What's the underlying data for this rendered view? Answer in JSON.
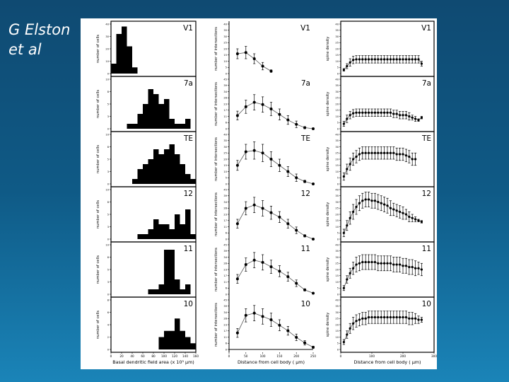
{
  "slide": {
    "credit_line1": "G Elston",
    "credit_line2": "et al",
    "background_top": "#0f4a72",
    "background_bottom": "#1a84b8"
  },
  "chart_data": {
    "type": "figure-grid",
    "rows": [
      "V1",
      "7a",
      "TE",
      "12",
      "11",
      "10"
    ],
    "columns": [
      {
        "type": "bar",
        "name": "histogram",
        "ylabel": "number of cells",
        "xlabel": "Basal dendritic field area (x 10³ µm)",
        "xlim": [
          0,
          160
        ],
        "xticks": [
          0,
          20,
          40,
          60,
          80,
          100,
          120,
          140,
          160
        ],
        "bins": [
          5,
          15,
          25,
          35,
          45,
          55,
          65,
          75,
          85,
          95,
          105,
          115,
          125,
          135,
          145,
          155
        ],
        "ylims": {
          "V1": [
            0,
            40
          ],
          "7a": [
            0,
            10
          ],
          "TE": [
            0,
            10
          ],
          "12": [
            0,
            10
          ],
          "11": [
            0,
            10
          ],
          "10": [
            0,
            8
          ]
        },
        "series": {
          "V1": [
            8,
            32,
            38,
            22,
            5,
            0,
            0,
            0,
            0,
            0,
            0,
            0,
            0,
            0,
            0,
            0
          ],
          "7a": [
            0,
            0,
            0,
            1,
            1,
            3,
            5,
            8,
            7,
            5,
            6,
            2,
            1,
            1,
            2,
            0
          ],
          "TE": [
            0,
            0,
            0,
            0,
            1,
            3,
            4,
            5,
            7,
            6,
            7,
            8,
            6,
            4,
            2,
            1
          ],
          "12": [
            0,
            0,
            0,
            0,
            0,
            1,
            1,
            2,
            4,
            3,
            3,
            2,
            5,
            3,
            6,
            1
          ],
          "11": [
            0,
            0,
            0,
            0,
            0,
            0,
            0,
            1,
            1,
            2,
            9,
            9,
            3,
            1,
            2,
            0
          ],
          "10": [
            0,
            0,
            0,
            0,
            0,
            0,
            0,
            0,
            0,
            2,
            3,
            3,
            5,
            3,
            2,
            1
          ]
        }
      },
      {
        "type": "line",
        "name": "intersections",
        "ylabel": "number of intersections",
        "xlabel": "Distance from cell body ( µm)",
        "xlim": [
          0,
          250
        ],
        "xticks": [
          0,
          50,
          100,
          150,
          200,
          250
        ],
        "ylims": {
          "V1": [
            0,
            40
          ],
          "7a": [
            0,
            45
          ],
          "TE": [
            0,
            40
          ],
          "12": [
            0,
            45
          ],
          "11": [
            0,
            45
          ],
          "10": [
            0,
            45
          ]
        },
        "series": {
          "V1": {
            "x": [
              25,
              50,
              75,
              100,
              125
            ],
            "y": [
              16,
              17,
              12,
              6,
              2
            ],
            "err": [
              4,
              5,
              4,
              3,
              1
            ]
          },
          "7a": {
            "x": [
              25,
              50,
              75,
              100,
              125,
              150,
              175,
              200,
              225,
              250
            ],
            "y": [
              12,
              20,
              24,
              22,
              18,
              13,
              8,
              4,
              1,
              0
            ],
            "err": [
              4,
              6,
              7,
              7,
              6,
              5,
              4,
              3,
              1,
              0
            ]
          },
          "TE": {
            "x": [
              25,
              50,
              75,
              100,
              125,
              150,
              175,
              200,
              225,
              250
            ],
            "y": [
              15,
              26,
              27,
              25,
              20,
              15,
              10,
              5,
              2,
              0
            ],
            "err": [
              4,
              6,
              7,
              7,
              6,
              5,
              4,
              3,
              1,
              0
            ]
          },
          "12": {
            "x": [
              25,
              50,
              75,
              100,
              125,
              150,
              175,
              200,
              225,
              250
            ],
            "y": [
              14,
              28,
              31,
              28,
              24,
              20,
              14,
              8,
              3,
              0
            ],
            "err": [
              4,
              6,
              7,
              7,
              6,
              5,
              4,
              3,
              1,
              0
            ]
          },
          "11": {
            "x": [
              25,
              50,
              75,
              100,
              125,
              150,
              175,
              200,
              225,
              250
            ],
            "y": [
              14,
              27,
              31,
              29,
              25,
              21,
              16,
              10,
              4,
              1
            ],
            "err": [
              4,
              6,
              7,
              7,
              6,
              5,
              4,
              3,
              1,
              0
            ]
          },
          "10": {
            "x": [
              25,
              50,
              75,
              100,
              125,
              150,
              175,
              200,
              225,
              250
            ],
            "y": [
              15,
              31,
              33,
              30,
              27,
              22,
              17,
              11,
              6,
              2
            ],
            "err": [
              4,
              6,
              7,
              7,
              6,
              5,
              4,
              3,
              2,
              1
            ]
          }
        }
      },
      {
        "type": "line",
        "name": "spine-density",
        "ylabel": "spine density",
        "xlabel": "Distance from cell body ( µm)",
        "xlim": [
          0,
          300
        ],
        "xticks": [
          0,
          100,
          200,
          300
        ],
        "ylims": {
          "V1": [
            0,
            40
          ],
          "7a": [
            0,
            40
          ],
          "TE": [
            0,
            40
          ],
          "12": [
            0,
            40
          ],
          "11": [
            0,
            40
          ],
          "10": [
            0,
            40
          ]
        },
        "series": {
          "V1": {
            "x": [
              10,
              20,
              30,
              40,
              50,
              60,
              70,
              80,
              90,
              100,
              110,
              120,
              130,
              140,
              150,
              160,
              170,
              180,
              190,
              200,
              210,
              220,
              230,
              240,
              250,
              260
            ],
            "y": [
              3,
              6,
              9,
              11,
              11.5,
              11.5,
              11.5,
              11.5,
              11.5,
              11.5,
              11.5,
              11.5,
              11.5,
              11.5,
              11.5,
              11.5,
              11.5,
              11.5,
              11.5,
              11.5,
              11.5,
              11.5,
              11.5,
              11.5,
              11.5,
              8
            ],
            "err": [
              1,
              2,
              3,
              3,
              3,
              3,
              3,
              3,
              3,
              3,
              3,
              3,
              3,
              3,
              3,
              3,
              3,
              3,
              3,
              3,
              3,
              3,
              3,
              3,
              3,
              2
            ]
          },
          "7a": {
            "x": [
              10,
              20,
              30,
              40,
              50,
              60,
              70,
              80,
              90,
              100,
              110,
              120,
              130,
              140,
              150,
              160,
              170,
              180,
              190,
              200,
              210,
              220,
              230,
              240,
              250,
              260
            ],
            "y": [
              4,
              8,
              11,
              12.5,
              13,
              13,
              13,
              13,
              13,
              13,
              13,
              13,
              13,
              13,
              13,
              13,
              12,
              12,
              11,
              11,
              11,
              10,
              9,
              8,
              7,
              9
            ],
            "err": [
              2,
              3,
              3,
              3,
              3,
              3,
              3,
              3,
              3,
              3,
              3,
              3,
              3,
              3,
              3,
              3,
              3,
              3,
              3,
              3,
              3,
              3,
              2,
              2,
              1,
              1
            ]
          },
          "TE": {
            "x": [
              10,
              20,
              30,
              40,
              50,
              60,
              70,
              80,
              90,
              100,
              110,
              120,
              130,
              140,
              150,
              160,
              170,
              180,
              190,
              200,
              210,
              220,
              230,
              240
            ],
            "y": [
              6,
              12,
              16,
              20,
              22,
              24,
              25,
              25,
              25,
              25,
              25,
              25,
              25,
              25,
              25,
              25,
              25,
              24,
              24,
              24,
              23,
              22,
              20,
              20
            ],
            "err": [
              3,
              4,
              5,
              5,
              5,
              5,
              5,
              5,
              5,
              5,
              5,
              5,
              5,
              5,
              5,
              5,
              5,
              5,
              5,
              5,
              5,
              5,
              5,
              5
            ]
          },
          "12": {
            "x": [
              10,
              20,
              30,
              40,
              50,
              60,
              70,
              80,
              90,
              100,
              110,
              120,
              130,
              140,
              150,
              160,
              170,
              180,
              190,
              200,
              210,
              220,
              230,
              240,
              250,
              260
            ],
            "y": [
              5,
              11,
              17,
              22,
              26,
              29,
              31,
              32,
              32,
              31,
              31,
              30,
              29,
              28,
              27,
              25,
              24,
              23,
              22,
              21,
              20,
              18,
              17,
              16,
              15,
              14
            ],
            "err": [
              3,
              4,
              5,
              6,
              6,
              6,
              6,
              6,
              6,
              6,
              6,
              6,
              6,
              6,
              6,
              6,
              5,
              5,
              5,
              5,
              4,
              4,
              3,
              2,
              1,
              1
            ]
          },
          "11": {
            "x": [
              10,
              20,
              30,
              40,
              50,
              60,
              70,
              80,
              90,
              100,
              110,
              120,
              130,
              140,
              150,
              160,
              170,
              180,
              190,
              200,
              210,
              220,
              230,
              240,
              250,
              260
            ],
            "y": [
              5,
              12,
              17,
              21,
              24,
              25,
              26,
              26,
              26,
              26,
              26,
              25,
              25,
              25,
              25,
              25,
              24,
              24,
              24,
              23,
              23,
              22,
              22,
              21,
              21,
              20
            ],
            "err": [
              2,
              3,
              4,
              5,
              6,
              6,
              6,
              6,
              6,
              6,
              6,
              6,
              6,
              6,
              6,
              6,
              6,
              6,
              6,
              6,
              6,
              6,
              6,
              6,
              5,
              5
            ]
          },
          "10": {
            "x": [
              10,
              20,
              30,
              40,
              50,
              60,
              70,
              80,
              90,
              100,
              110,
              120,
              130,
              140,
              150,
              160,
              170,
              180,
              190,
              200,
              210,
              220,
              230,
              240,
              250,
              260
            ],
            "y": [
              6,
              12,
              17,
              21,
              23,
              24,
              25,
              25,
              26,
              26,
              26,
              26,
              26,
              26,
              26,
              26,
              26,
              26,
              26,
              26,
              26,
              25,
              25,
              25,
              24,
              24
            ],
            "err": [
              2,
              3,
              4,
              5,
              5,
              5,
              5,
              5,
              5,
              5,
              5,
              5,
              5,
              5,
              5,
              5,
              5,
              5,
              5,
              5,
              5,
              5,
              5,
              4,
              3,
              2
            ]
          }
        }
      }
    ]
  }
}
